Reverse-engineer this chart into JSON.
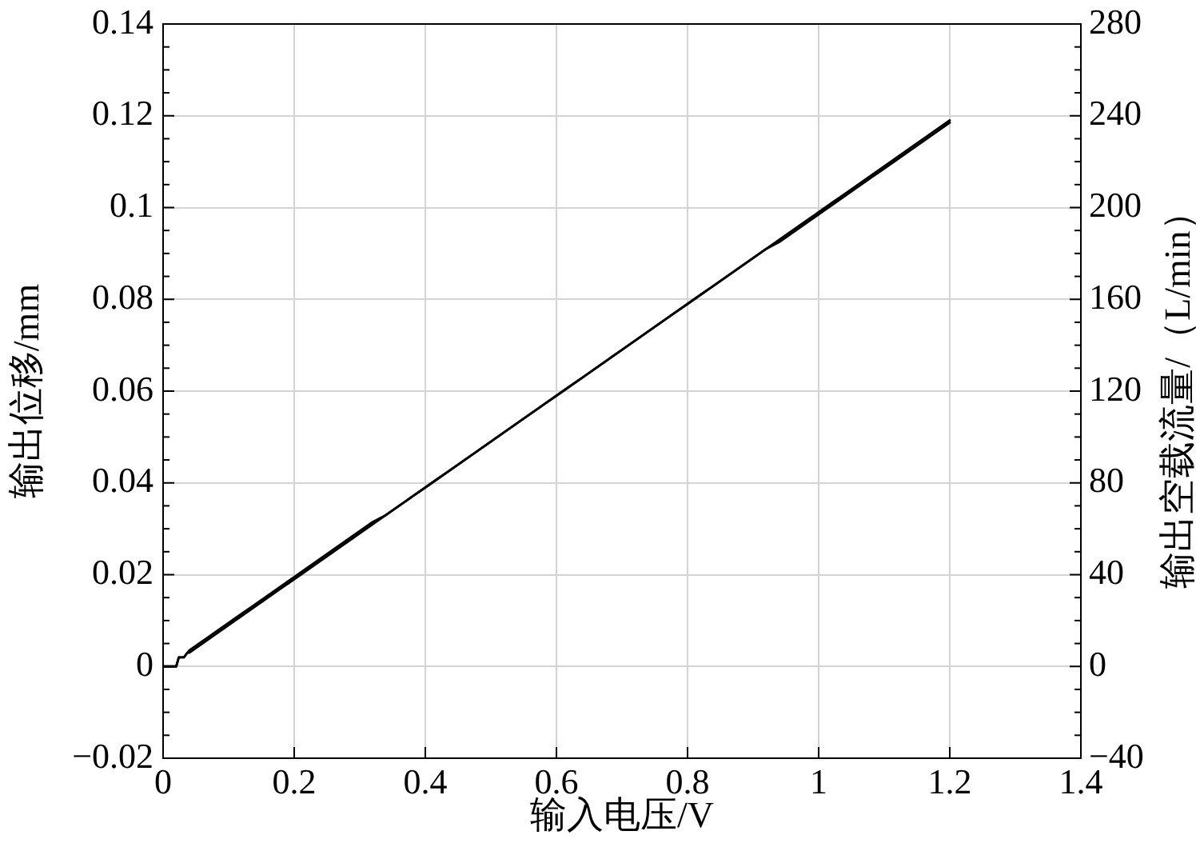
{
  "chart_data": {
    "type": "line",
    "xlabel": "输入电压/V",
    "ylabel": "输出位移/mm",
    "y2label": "输出空载流量/（L/min）",
    "x": [
      0,
      0.02,
      0.024,
      0.032,
      0.037,
      0.04,
      0.06,
      0.08,
      0.1,
      0.12,
      0.14,
      0.16,
      0.18,
      0.2,
      0.22,
      0.24,
      0.26,
      0.28,
      0.3,
      0.32,
      0.34,
      0.36,
      0.38,
      0.4,
      0.42,
      0.44,
      0.46,
      0.48,
      0.5,
      0.52,
      0.54,
      0.56,
      0.58,
      0.6,
      0.62,
      0.64,
      0.66,
      0.68,
      0.7,
      0.72,
      0.74,
      0.76,
      0.78,
      0.8,
      0.82,
      0.84,
      0.86,
      0.88,
      0.9,
      0.92,
      0.94,
      0.96,
      0.98,
      1,
      1.02,
      1.04,
      1.06,
      1.08,
      1.1,
      1.12,
      1.14,
      1.16,
      1.18,
      1.2
    ],
    "series": [
      {
        "color": "#000000",
        "values": [
          0,
          0,
          0.002,
          0.002,
          0.003,
          0.003,
          0.005,
          0.007,
          0.009,
          0.011,
          0.013,
          0.015,
          0.017,
          0.019,
          0.021,
          0.023,
          0.025,
          0.027,
          0.029,
          0.031,
          0.033,
          0.035,
          0.037,
          0.039,
          0.041,
          0.043,
          0.045,
          0.047,
          0.049,
          0.051,
          0.053,
          0.055,
          0.057,
          0.059,
          0.061,
          0.063,
          0.065,
          0.067,
          0.069,
          0.071,
          0.073,
          0.075,
          0.077,
          0.079,
          0.081,
          0.083,
          0.085,
          0.087,
          0.089,
          0.091,
          0.093,
          0.095,
          0.097,
          0.099,
          0.101,
          0.103,
          0.105,
          0.107,
          0.109,
          0.111,
          0.113,
          0.115,
          0.117,
          0.119
        ]
      },
      {
        "color": "#000000",
        "axis": "y2",
        "values": [
          0,
          0,
          4,
          4,
          6,
          7,
          11,
          15,
          19,
          23,
          27,
          31,
          35,
          39,
          43,
          47,
          51,
          55,
          59,
          63,
          66,
          70,
          74,
          78,
          82,
          86,
          90,
          94,
          98,
          102,
          106,
          110,
          114,
          118,
          122,
          126,
          130,
          134,
          138,
          142,
          146,
          150,
          154,
          158,
          162,
          166,
          170,
          174,
          178,
          182,
          185,
          189,
          193,
          197,
          201,
          205,
          209,
          213,
          217,
          221,
          225,
          229,
          233,
          237
        ]
      }
    ],
    "xlim": [
      0,
      1.4
    ],
    "xticks": [
      0,
      0.2,
      0.4,
      0.6,
      0.8,
      1,
      1.2,
      1.4
    ],
    "ylim": [
      -0.02,
      0.14
    ],
    "yticks": [
      {
        "value": -0.02,
        "label": "−0.02"
      },
      {
        "value": -0.015,
        "label": null
      },
      {
        "value": -0.01,
        "label": null
      },
      {
        "value": -0.005,
        "label": null
      },
      0,
      {
        "value": 0.005,
        "label": null
      },
      {
        "value": 0.01,
        "label": null
      },
      {
        "value": 0.015,
        "label": null
      },
      0.02,
      {
        "value": 0.025,
        "label": null
      },
      {
        "value": 0.03,
        "label": null
      },
      {
        "value": 0.035,
        "label": null
      },
      0.04,
      {
        "value": 0.045,
        "label": null
      },
      {
        "value": 0.05,
        "label": null
      },
      {
        "value": 0.055,
        "label": null
      },
      0.06,
      {
        "value": 0.065,
        "label": null
      },
      {
        "value": 0.07,
        "label": null
      },
      {
        "value": 0.075,
        "label": null
      },
      0.08,
      {
        "value": 0.085,
        "label": null
      },
      {
        "value": 0.09,
        "label": null
      },
      {
        "value": 0.095,
        "label": null
      },
      0.1,
      {
        "value": 0.105,
        "label": null
      },
      {
        "value": 0.11,
        "label": null
      },
      {
        "value": 0.115,
        "label": null
      },
      0.12,
      {
        "value": 0.125,
        "label": null
      },
      {
        "value": 0.13,
        "label": null
      },
      {
        "value": 0.135,
        "label": null
      },
      0.14
    ],
    "y2lim": [
      -40,
      280
    ],
    "y2ticks": [
      {
        "value": -40,
        "label": "−40"
      },
      {
        "value": -30,
        "label": null
      },
      {
        "value": -20,
        "label": null
      },
      {
        "value": -10,
        "label": null
      },
      0,
      {
        "value": 10,
        "label": null
      },
      {
        "value": 20,
        "label": null
      },
      {
        "value": 30,
        "label": null
      },
      40,
      {
        "value": 50,
        "label": null
      },
      {
        "value": 60,
        "label": null
      },
      {
        "value": 70,
        "label": null
      },
      80,
      {
        "value": 90,
        "label": null
      },
      {
        "value": 100,
        "label": null
      },
      {
        "value": 110,
        "label": null
      },
      120,
      {
        "value": 130,
        "label": null
      },
      {
        "value": 140,
        "label": null
      },
      {
        "value": 150,
        "label": null
      },
      160,
      {
        "value": 170,
        "label": null
      },
      {
        "value": 180,
        "label": null
      },
      {
        "value": 190,
        "label": null
      },
      200,
      {
        "value": 210,
        "label": null
      },
      {
        "value": 220,
        "label": null
      },
      {
        "value": 230,
        "label": null
      },
      240,
      {
        "value": 250,
        "label": null
      },
      {
        "value": 260,
        "label": null
      },
      {
        "value": 270,
        "label": null
      },
      280
    ],
    "grid": true
  }
}
